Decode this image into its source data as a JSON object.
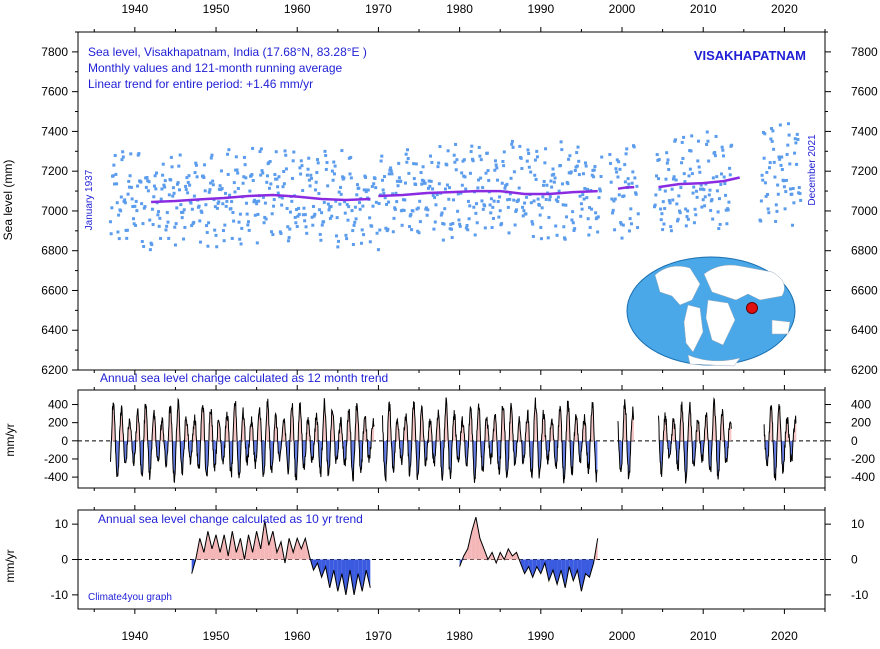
{
  "colors": {
    "points": "#5b9cec",
    "running_average": "#8a2be2",
    "positive_fill": "#f4b6b6",
    "positive_edge": "#c81e1e",
    "negative_fill": "#3a5adf",
    "negative_edge": "#1010a0",
    "text_blue": "#1f1fd6",
    "globe_ocean": "#4aa8e8",
    "globe_land": "#ffffff",
    "marker": "#e01010"
  },
  "header": {
    "line1": "Sea level, Visakhapatnam, India (17.68°N, 83.28°E )",
    "line2": "Monthly values and 121-month running average",
    "line3": "Linear trend for entire period: +1.46 mm/yr",
    "station": "VISAKHAPATNAM",
    "start_label": "January 1937",
    "end_label": "December 2021"
  },
  "credit": "Climate4you graph",
  "chart_data": [
    {
      "type": "scatter",
      "title": "Sea level, Visakhapatnam, India (17.68°N, 83.28°E )",
      "ylabel": "Sea level (mm)",
      "xlim": [
        1933,
        2025
      ],
      "ylim": [
        6200,
        7900
      ],
      "x_ticks": [
        "1940",
        "1950",
        "1960",
        "1970",
        "1980",
        "1990",
        "2000",
        "2010",
        "2020"
      ],
      "y_ticks": [
        "6200",
        "6400",
        "6600",
        "6800",
        "7000",
        "7200",
        "7400",
        "7600",
        "7800"
      ],
      "series": [
        {
          "name": "121-month running average",
          "segments": [
            {
              "x": [
                1942.0,
                1945.0,
                1948.0,
                1951.0,
                1954.0,
                1957.0,
                1960.0,
                1963.0,
                1966.0,
                1969.0
              ],
              "y": [
                7045,
                7050,
                7058,
                7065,
                7075,
                7080,
                7072,
                7060,
                7055,
                7060
              ]
            },
            {
              "x": [
                1970.0,
                1973.0,
                1976.0,
                1979.0,
                1982.0,
                1985.0,
                1988.0,
                1991.0,
                1994.0,
                1997.0
              ],
              "y": [
                7075,
                7080,
                7090,
                7095,
                7100,
                7100,
                7085,
                7085,
                7095,
                7100
              ]
            },
            {
              "x": [
                1999.5,
                2000.5,
                2001.5
              ],
              "y": [
                7112,
                7118,
                7120
              ]
            },
            {
              "x": [
                2004.5,
                2007.0,
                2010.0,
                2012.5,
                2014.5
              ],
              "y": [
                7120,
                7135,
                7140,
                7150,
                7168
              ]
            }
          ]
        }
      ],
      "monthly_coverage": [
        [
          1937.0,
          1969.9
        ],
        [
          1970.0,
          1997.5
        ],
        [
          1998.5,
          2002.0
        ],
        [
          2004.0,
          2013.5
        ],
        [
          2017.0,
          2022.0
        ]
      ],
      "monthly_range_mm": [
        6740,
        7520
      ],
      "annual_amplitude_mm": 150
    },
    {
      "type": "area",
      "title": "Annual sea level change calculated as 12 month trend",
      "ylabel": "mm/yr",
      "xlim": [
        1933,
        2025
      ],
      "ylim": [
        -520,
        560
      ],
      "y_ticks": [
        "-400",
        "-200",
        "0",
        "200",
        "400"
      ],
      "segments": [
        [
          1937.0,
          1969.5
        ],
        [
          1970.5,
          1997.0
        ],
        [
          1999.5,
          2001.5
        ],
        [
          2004.5,
          2013.5
        ],
        [
          2017.5,
          2021.5
        ]
      ],
      "oscillation_amplitude": 420,
      "reference_line": 0
    },
    {
      "type": "area",
      "title": "Annual sea level change calculated as 10 yr trend",
      "ylabel": "mm/yr",
      "xlim": [
        1933,
        2025
      ],
      "ylim": [
        -14,
        14
      ],
      "y_ticks": [
        "-10",
        "0",
        "10"
      ],
      "x_ticks": [
        "1940",
        "1950",
        "1960",
        "1970",
        "1980",
        "1990",
        "2000",
        "2010",
        "2020"
      ],
      "segments": [
        {
          "x": [
            1947.0,
            1947.5,
            1948.0,
            1948.5,
            1949.0,
            1949.5,
            1950.0,
            1950.5,
            1951.0,
            1951.5,
            1952.0,
            1952.5,
            1953.0,
            1953.5,
            1954.0,
            1954.5,
            1955.0,
            1955.5,
            1956.0,
            1956.5,
            1957.0,
            1957.5,
            1958.0,
            1958.5,
            1959.0,
            1959.5,
            1960.0,
            1960.5,
            1961.0,
            1961.5,
            1962.0,
            1962.5,
            1963.0,
            1963.5,
            1964.0,
            1964.5,
            1965.0,
            1965.5,
            1966.0,
            1966.5,
            1967.0,
            1967.5,
            1968.0,
            1968.5,
            1969.0
          ],
          "y": [
            -4,
            0,
            6,
            2,
            8,
            3,
            7,
            2,
            7,
            1,
            8,
            2,
            6,
            0,
            7,
            2,
            8,
            3,
            11,
            4,
            8,
            2,
            5,
            -1,
            6,
            2,
            6,
            3,
            6,
            1,
            -3,
            -1,
            -5,
            -2,
            -8,
            -3,
            -9,
            -4,
            -10,
            -3,
            -10,
            -4,
            -9,
            -3,
            -8
          ]
        },
        {
          "x": [
            1980.0,
            1980.5,
            1981.0,
            1981.5,
            1982.0,
            1982.5,
            1983.0,
            1983.5,
            1984.0,
            1984.5,
            1985.0,
            1985.5,
            1986.0,
            1986.5,
            1987.0,
            1987.5,
            1988.0,
            1988.5,
            1989.0,
            1989.5,
            1990.0,
            1990.5,
            1991.0,
            1991.5,
            1992.0,
            1992.5,
            1993.0,
            1993.5,
            1994.0,
            1994.5,
            1995.0,
            1995.5,
            1996.0,
            1996.5,
            1997.0
          ],
          "y": [
            -2,
            1,
            3,
            8,
            12,
            6,
            3,
            0,
            2,
            -1,
            2,
            0,
            3,
            1,
            2,
            -1,
            -4,
            -2,
            -5,
            -2,
            -4,
            -1,
            -6,
            -3,
            -7,
            -3,
            -8,
            -2,
            -6,
            -3,
            -9,
            -4,
            -5,
            -1,
            6
          ]
        }
      ],
      "reference_line": 0
    }
  ]
}
